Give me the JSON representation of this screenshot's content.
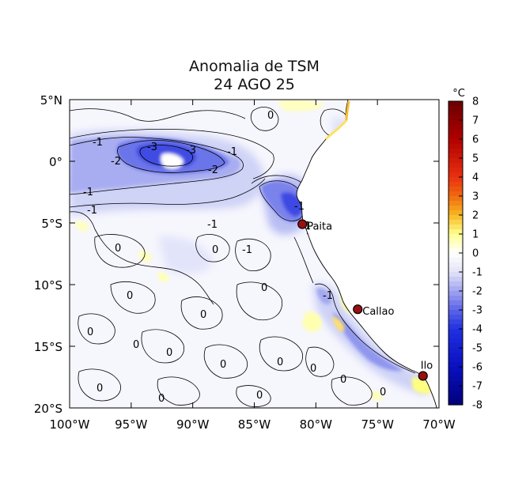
{
  "title": "Anomalia de TSM",
  "subtitle": "24 AGO 25",
  "map": {
    "lon_ticks": [
      "100°W",
      "95°W",
      "90°W",
      "85°W",
      "80°W",
      "75°W",
      "70°W"
    ],
    "lat_ticks": [
      "5°N",
      "0°",
      "5°S",
      "10°S",
      "15°S",
      "20°S"
    ],
    "lon_range": [
      -100,
      -70
    ],
    "lat_range": [
      -20,
      5
    ]
  },
  "colorbar": {
    "unit": "°C",
    "ticks": [
      "8",
      "7",
      "6",
      "5",
      "4",
      "3",
      "2",
      "1",
      "0",
      "-1",
      "-2",
      "-3",
      "-4",
      "-5",
      "-6",
      "-7",
      "-8"
    ],
    "range": [
      -8,
      8
    ],
    "colors": {
      "8": "#6a0000",
      "6": "#b00000",
      "4": "#e83010",
      "3": "#f06a10",
      "2": "#f7b820",
      "1": "#ffff90",
      "0": "#ffffff",
      "-1": "#e4e4f8",
      "-2": "#a0a4f0",
      "-3": "#5c64e8",
      "-4": "#2030e0",
      "-6": "#0a10c0",
      "-8": "#00007a"
    }
  },
  "stations": [
    {
      "name": "Paita",
      "lon": -81.1,
      "lat": -5.1
    },
    {
      "name": "Callao",
      "lon": -76.6,
      "lat": -12.0
    },
    {
      "name": "Ilo",
      "lon": -71.3,
      "lat": -17.4
    }
  ],
  "contour_labels": [
    "-1",
    "-2",
    "-3",
    "-3",
    "-1",
    "-2",
    "-1",
    "-1",
    "-1",
    "-1",
    "-1",
    "0",
    "-1",
    "0",
    "0",
    "0",
    "0",
    "0",
    "0",
    "0",
    "0",
    "0",
    "0",
    "0",
    "0",
    "0",
    "0",
    "0",
    "-1",
    "0"
  ]
}
